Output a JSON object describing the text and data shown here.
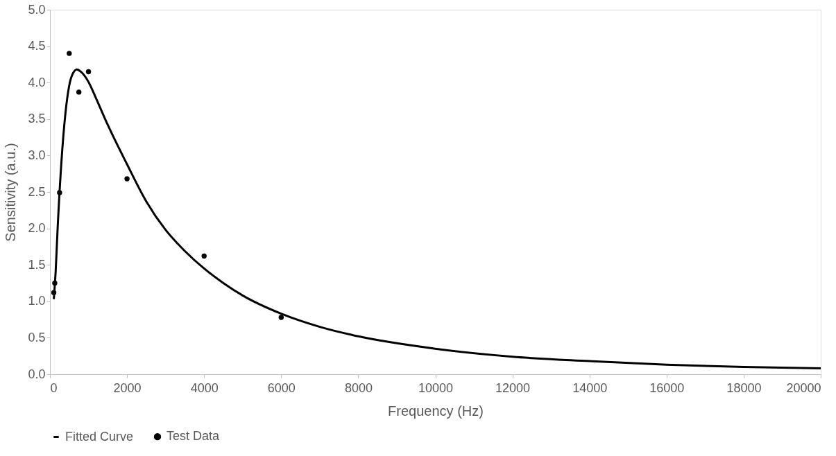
{
  "chart_data": {
    "type": "scatter",
    "xlabel": "Frequency (Hz)",
    "ylabel": "Sensitivity (a.u.)",
    "xlim": [
      0,
      20000
    ],
    "xticks": [
      0,
      2000,
      4000,
      6000,
      8000,
      10000,
      12000,
      14000,
      16000,
      18000,
      20000
    ],
    "ylim": [
      0,
      5
    ],
    "yticks": [
      {
        "value": 0,
        "label": "0.0"
      },
      0.5,
      {
        "value": 1,
        "label": "1.0"
      },
      1.5,
      {
        "value": 2,
        "label": "2.0"
      },
      2.5,
      {
        "value": 3,
        "label": "3.0"
      },
      3.5,
      {
        "value": 4,
        "label": "4.0"
      },
      4.5,
      {
        "value": 5,
        "label": "5.0"
      }
    ],
    "grid": false,
    "legend": "bottom",
    "series": [
      {
        "name": "Fitted Curve",
        "type": "line",
        "color": "#000000",
        "marker": "none",
        "line_style": "solid",
        "x": [
          100,
          150,
          200,
          300,
          400,
          500,
          600,
          700,
          800,
          1000,
          1200,
          1500,
          2000,
          2500,
          3000,
          3500,
          4000,
          4500,
          5000,
          6000,
          7000,
          8000,
          10000,
          12000,
          14000,
          16000,
          18000,
          20000
        ],
        "values": [
          1.03,
          1.43,
          2.01,
          2.93,
          3.57,
          3.96,
          4.13,
          4.18,
          4.15,
          4.01,
          3.78,
          3.42,
          2.88,
          2.37,
          1.98,
          1.69,
          1.45,
          1.25,
          1.08,
          0.83,
          0.65,
          0.52,
          0.35,
          0.24,
          0.18,
          0.13,
          0.1,
          0.08
        ]
      },
      {
        "name": "Test Data",
        "color": "#000000",
        "marker": "circle",
        "x": [
          100,
          125,
          250,
          500,
          750,
          1000,
          2000,
          4000,
          6000
        ],
        "values": [
          1.12,
          1.25,
          2.49,
          4.4,
          3.87,
          4.15,
          2.68,
          1.62,
          0.78
        ]
      }
    ]
  }
}
